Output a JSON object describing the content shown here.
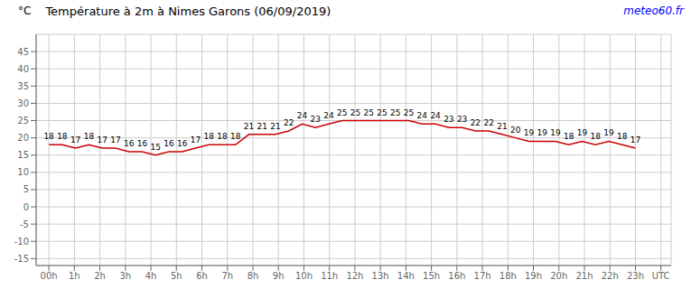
{
  "chart_data": {
    "type": "line",
    "title": "Température à 2m à Nimes Garons (06/09/2019)",
    "ylabel": "°C",
    "annotations": [
      {
        "text": "meteo60.fr",
        "color": "blue"
      }
    ],
    "x": [
      0,
      0.522727,
      1.045455,
      1.568182,
      2.090909,
      2.613636,
      3.136364,
      3.659091,
      4.181818,
      4.704545,
      5.227273,
      5.75,
      6.272727,
      6.795455,
      7.318182,
      7.840909,
      8.363636,
      8.886364,
      9.409091,
      9.931818,
      10.454545,
      10.977273,
      11.5,
      12.022727,
      12.545455,
      13.068182,
      13.590909,
      14.113636,
      14.636364,
      15.159091,
      15.681818,
      16.204545,
      16.727273,
      17.25,
      17.772727,
      18.295455,
      18.818182,
      19.340909,
      19.863636,
      20.386364,
      20.909091,
      21.431818,
      21.954545,
      22.477273,
      23
    ],
    "values": [
      18,
      18,
      17,
      18,
      17,
      17,
      16,
      16,
      15,
      16,
      16,
      17,
      18,
      18,
      18,
      21,
      21,
      21,
      22,
      24,
      23,
      24,
      25,
      25,
      25,
      25,
      25,
      25,
      24,
      24,
      23,
      23,
      22,
      22,
      21,
      20,
      19,
      19,
      19,
      18,
      19,
      18,
      19,
      18,
      17
    ],
    "color": "#cc0000",
    "xlim": [
      -0.5,
      24.4
    ],
    "xticks": [
      {
        "value": 0,
        "label": "00h"
      },
      {
        "value": 1,
        "label": "1h"
      },
      {
        "value": 2,
        "label": "2h"
      },
      {
        "value": 3,
        "label": "3h"
      },
      {
        "value": 4,
        "label": "4h"
      },
      {
        "value": 5,
        "label": "5h"
      },
      {
        "value": 6,
        "label": "6h"
      },
      {
        "value": 7,
        "label": "7h"
      },
      {
        "value": 8,
        "label": "8h"
      },
      {
        "value": 9,
        "label": "9h"
      },
      {
        "value": 10,
        "label": "10h"
      },
      {
        "value": 11,
        "label": "11h"
      },
      {
        "value": 12,
        "label": "12h"
      },
      {
        "value": 13,
        "label": "13h"
      },
      {
        "value": 14,
        "label": "14h"
      },
      {
        "value": 15,
        "label": "15h"
      },
      {
        "value": 16,
        "label": "16h"
      },
      {
        "value": 17,
        "label": "17h"
      },
      {
        "value": 18,
        "label": "18h"
      },
      {
        "value": 19,
        "label": "19h"
      },
      {
        "value": 20,
        "label": "20h"
      },
      {
        "value": 21,
        "label": "21h"
      },
      {
        "value": 22,
        "label": "22h"
      },
      {
        "value": 23,
        "label": "23h"
      },
      {
        "value": 24,
        "label": "UTC"
      }
    ],
    "ylim": [
      -17,
      50
    ],
    "yticks": [
      -15,
      -10,
      -5,
      0,
      5,
      10,
      15,
      20,
      25,
      30,
      35,
      40,
      45
    ],
    "grid": true,
    "data_labels": true
  }
}
